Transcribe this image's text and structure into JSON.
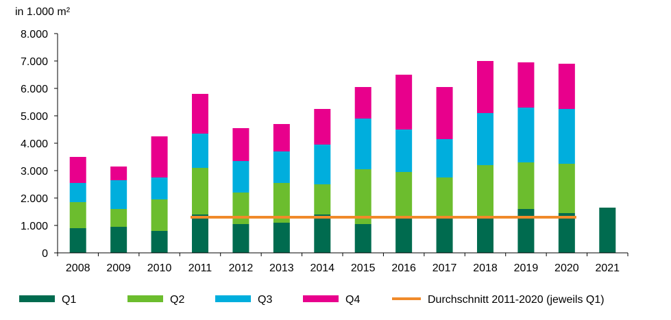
{
  "chart_data": {
    "type": "bar",
    "stacked": true,
    "unit_label": "in 1.000 m²",
    "categories": [
      "2008",
      "2009",
      "2010",
      "2011",
      "2012",
      "2013",
      "2014",
      "2015",
      "2016",
      "2017",
      "2018",
      "2019",
      "2020",
      "2021"
    ],
    "ylim": [
      0,
      8000
    ],
    "yticks": [
      0,
      1000,
      2000,
      3000,
      4000,
      5000,
      6000,
      7000,
      8000
    ],
    "ytick_labels": [
      "0",
      "1.000",
      "2.000",
      "3.000",
      "4.000",
      "5.000",
      "6.000",
      "7.000",
      "8.000"
    ],
    "series": [
      {
        "name": "Q1",
        "color": "#006b4f",
        "values": [
          900,
          950,
          800,
          1400,
          1050,
          1100,
          1400,
          1050,
          1300,
          1250,
          1350,
          1600,
          1450,
          1650
        ]
      },
      {
        "name": "Q2",
        "color": "#6cbd2e",
        "values": [
          950,
          650,
          1150,
          1700,
          1150,
          1450,
          1100,
          2000,
          1650,
          1500,
          1850,
          1700,
          1800,
          0
        ]
      },
      {
        "name": "Q3",
        "color": "#00aedd",
        "values": [
          700,
          1050,
          800,
          1250,
          1150,
          1150,
          1450,
          1850,
          1550,
          1400,
          1900,
          2000,
          2000,
          0
        ]
      },
      {
        "name": "Q4",
        "color": "#e8008c",
        "values": [
          950,
          500,
          1500,
          1450,
          1200,
          1000,
          1300,
          1150,
          2000,
          1900,
          1900,
          1650,
          1650,
          0
        ]
      }
    ],
    "average_line": {
      "name": "Durchschnitt 2011-2020 (jeweils Q1)",
      "color": "#f08a2a",
      "value": 1300,
      "from": "2011",
      "to": "2020"
    },
    "grid": false,
    "legend_position": "bottom"
  }
}
